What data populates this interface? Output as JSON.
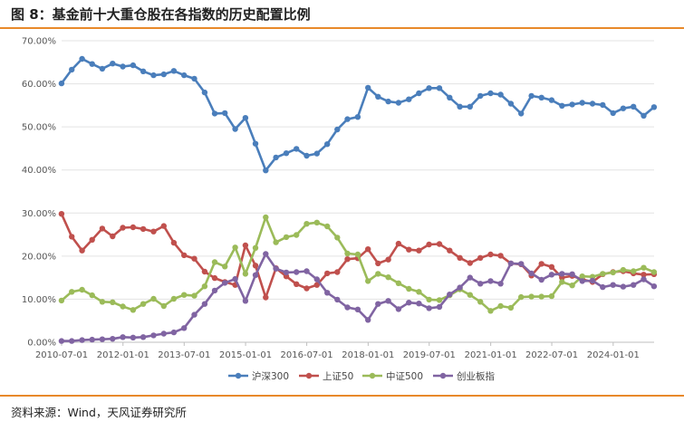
{
  "title": "图 8：基金前十大重仓股在各指数的历史配置比例",
  "source": "资料来源：Wind，天风证券研究所",
  "chart_data": {
    "type": "line",
    "ylim": [
      0,
      70
    ],
    "y_ticks": [
      "0.00%",
      "10.00%",
      "20.00%",
      "30.00%",
      "40.00%",
      "50.00%",
      "60.00%",
      "70.00%"
    ],
    "x_ticks": [
      "2010-07-01",
      "2012-01-01",
      "2013-07-01",
      "2015-01-01",
      "2016-07-01",
      "2018-01-01",
      "2019-07-01",
      "2021-01-01",
      "2022-07-01",
      "2024-01-01"
    ],
    "x": [
      "2010-06-30",
      "2010-09-30",
      "2010-12-31",
      "2011-03-31",
      "2011-06-30",
      "2011-09-30",
      "2011-12-31",
      "2012-03-31",
      "2012-06-30",
      "2012-09-30",
      "2012-12-31",
      "2013-03-31",
      "2013-06-30",
      "2013-09-30",
      "2013-12-31",
      "2014-03-31",
      "2014-06-30",
      "2014-09-30",
      "2014-12-31",
      "2015-03-31",
      "2015-06-30",
      "2015-09-30",
      "2015-12-31",
      "2016-03-31",
      "2016-06-30",
      "2016-09-30",
      "2016-12-31",
      "2017-03-31",
      "2017-06-30",
      "2017-09-30",
      "2017-12-31",
      "2018-03-31",
      "2018-06-30",
      "2018-09-30",
      "2018-12-31",
      "2019-03-31",
      "2019-06-30",
      "2019-09-30",
      "2019-12-31",
      "2020-03-31",
      "2020-06-30",
      "2020-09-30",
      "2020-12-31",
      "2021-03-31",
      "2021-06-30",
      "2021-09-30",
      "2021-12-31",
      "2022-03-31",
      "2022-06-30",
      "2022-09-30",
      "2022-12-31",
      "2023-03-31",
      "2023-06-30",
      "2023-09-30",
      "2023-12-31",
      "2024-03-31",
      "2024-06-30",
      "2024-09-30",
      "2024-12-31"
    ],
    "series": [
      {
        "name": "沪深300",
        "color": "#4A7EBB",
        "values": [
          60.1,
          63.3,
          65.8,
          64.6,
          63.5,
          64.7,
          64.0,
          64.3,
          62.9,
          62.0,
          62.2,
          63.0,
          62.0,
          61.2,
          58.0,
          53.1,
          53.2,
          49.5,
          52.1,
          46.1,
          39.9,
          42.9,
          43.9,
          44.9,
          43.3,
          43.8,
          46.0,
          49.4,
          51.8,
          52.3,
          59.1,
          57.0,
          55.9,
          55.6,
          56.4,
          57.8,
          59.0,
          59.0,
          56.8,
          54.7,
          54.7,
          57.2,
          57.8,
          57.5,
          55.4,
          53.1,
          57.2,
          56.8,
          56.2,
          54.9,
          55.2,
          55.6,
          55.4,
          55.1,
          53.2,
          54.3,
          54.7,
          52.6,
          54.6
        ]
      },
      {
        "name": "上证50",
        "color": "#C0504D",
        "values": [
          29.8,
          24.5,
          21.3,
          23.8,
          26.4,
          24.6,
          26.6,
          26.7,
          26.3,
          25.7,
          27.0,
          23.1,
          20.2,
          19.4,
          16.4,
          14.9,
          14.0,
          13.3,
          22.5,
          17.8,
          10.4,
          17.2,
          15.3,
          13.5,
          12.5,
          13.3,
          16.0,
          16.3,
          19.3,
          19.5,
          21.6,
          18.3,
          19.2,
          22.9,
          21.5,
          21.3,
          22.7,
          22.8,
          21.3,
          19.6,
          18.4,
          19.6,
          20.4,
          20.1,
          18.3,
          18.1,
          15.5,
          18.2,
          17.5,
          15.0,
          15.4,
          14.6,
          14.0,
          15.8,
          16.3,
          16.5,
          16.0,
          15.7,
          15.8
        ]
      },
      {
        "name": "中证500",
        "color": "#9BBB59",
        "values": [
          9.7,
          11.7,
          12.2,
          10.9,
          9.4,
          9.3,
          8.3,
          7.5,
          8.9,
          10.1,
          8.4,
          10.1,
          11.0,
          10.8,
          13.0,
          18.6,
          17.6,
          22.0,
          15.9,
          21.9,
          29.0,
          23.2,
          24.4,
          24.9,
          27.5,
          27.8,
          26.9,
          24.3,
          20.6,
          20.4,
          14.2,
          15.9,
          15.1,
          13.7,
          12.4,
          11.7,
          9.9,
          9.8,
          10.9,
          12.3,
          11.0,
          9.4,
          7.3,
          8.4,
          8.0,
          10.5,
          10.6,
          10.6,
          10.7,
          14.0,
          13.2,
          15.3,
          15.2,
          15.9,
          16.2,
          16.8,
          16.5,
          17.3,
          16.3
        ]
      },
      {
        "name": "创业板指",
        "color": "#8064A2",
        "values": [
          0.3,
          0.3,
          0.5,
          0.6,
          0.7,
          0.8,
          1.2,
          1.1,
          1.2,
          1.6,
          2.0,
          2.3,
          3.3,
          6.4,
          8.9,
          12.0,
          13.8,
          14.7,
          9.6,
          15.6,
          20.5,
          17.1,
          16.2,
          16.3,
          16.5,
          14.6,
          11.5,
          9.9,
          8.1,
          7.6,
          5.2,
          8.9,
          9.6,
          7.7,
          9.2,
          9.0,
          7.9,
          8.2,
          11.1,
          12.7,
          15.0,
          13.6,
          14.2,
          13.6,
          18.3,
          18.2,
          16.0,
          14.5,
          15.7,
          15.9,
          15.8,
          14.2,
          14.3,
          12.8,
          13.3,
          12.9,
          13.3,
          14.6,
          13.0
        ]
      }
    ],
    "legend_position": "bottom-center",
    "grid": true
  }
}
